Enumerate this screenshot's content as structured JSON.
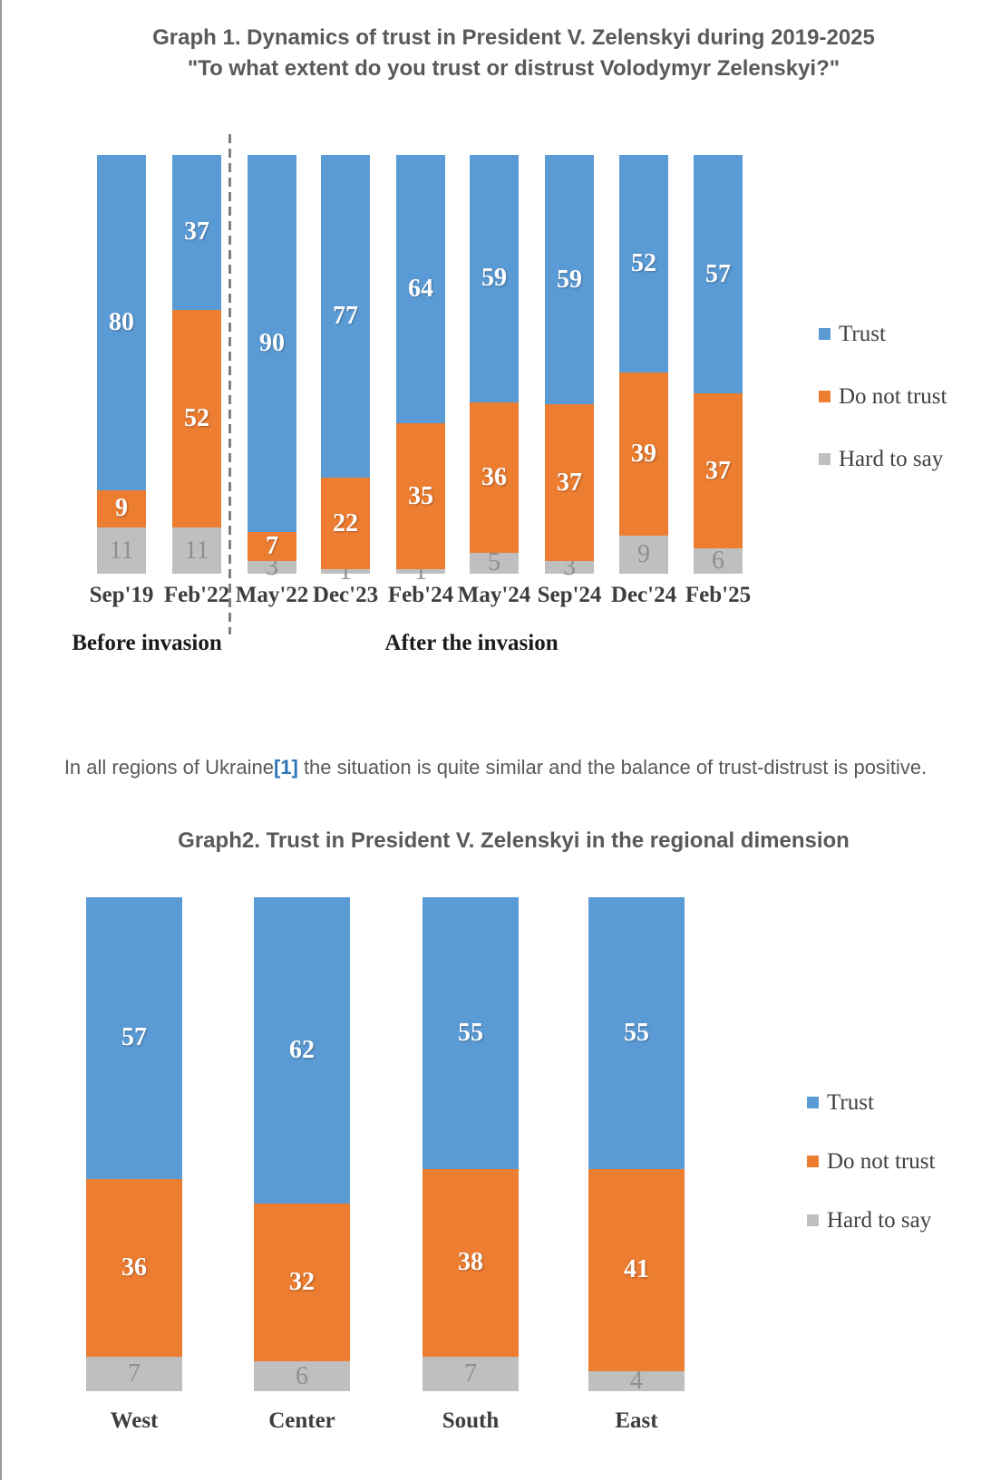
{
  "colors": {
    "trust": "#5B9BD5",
    "do_not_trust": "#ED7D31",
    "hard_to_say": "#BFBFBF",
    "footnote_link": "#2E75B6",
    "title_text": "#595959"
  },
  "paragraph": {
    "prefix": "In all regions of Ukraine",
    "ref": "[1]",
    "suffix": " the situation is quite similar and the balance of trust-distrust is positive."
  },
  "chart_data": [
    {
      "type": "bar",
      "subtype": "stacked-100",
      "title": "Graph 1. Dynamics of trust in President V. Zelenskyi during 2019-2025",
      "subtitle": "\"To what extent do you trust or distrust Volodymyr Zelenskyi?\"",
      "categories": [
        "Sep'19",
        "Feb'22",
        "May'22",
        "Dec'23",
        "Feb'24",
        "May'24",
        "Sep'24",
        "Dec'24",
        "Feb'25"
      ],
      "series": [
        {
          "name": "Trust",
          "color": "#5B9BD5",
          "values": [
            80,
            37,
            90,
            77,
            64,
            59,
            59,
            52,
            57
          ]
        },
        {
          "name": "Do not trust",
          "color": "#ED7D31",
          "values": [
            9,
            52,
            7,
            22,
            35,
            36,
            37,
            39,
            37
          ]
        },
        {
          "name": "Hard to say",
          "color": "#BFBFBF",
          "values": [
            11,
            11,
            3,
            1,
            1,
            5,
            3,
            9,
            6
          ]
        }
      ],
      "annotations": {
        "before_group": "Before invasion",
        "after_group": "After the invasion",
        "separator_between": [
          "Feb'22",
          "May'22"
        ]
      },
      "legend_position": "right",
      "ylim": [
        0,
        100
      ],
      "grid": false
    },
    {
      "type": "bar",
      "subtype": "stacked-100",
      "title": "Graph2. Trust in President V. Zelenskyi in the regional dimension",
      "categories": [
        "West",
        "Center",
        "South",
        "East"
      ],
      "series": [
        {
          "name": "Trust",
          "color": "#5B9BD5",
          "values": [
            57,
            62,
            55,
            55
          ]
        },
        {
          "name": "Do not trust",
          "color": "#ED7D31",
          "values": [
            36,
            32,
            38,
            41
          ]
        },
        {
          "name": "Hard to say",
          "color": "#BFBFBF",
          "values": [
            7,
            6,
            7,
            4
          ]
        }
      ],
      "legend_position": "right",
      "ylim": [
        0,
        100
      ],
      "grid": false
    }
  ]
}
